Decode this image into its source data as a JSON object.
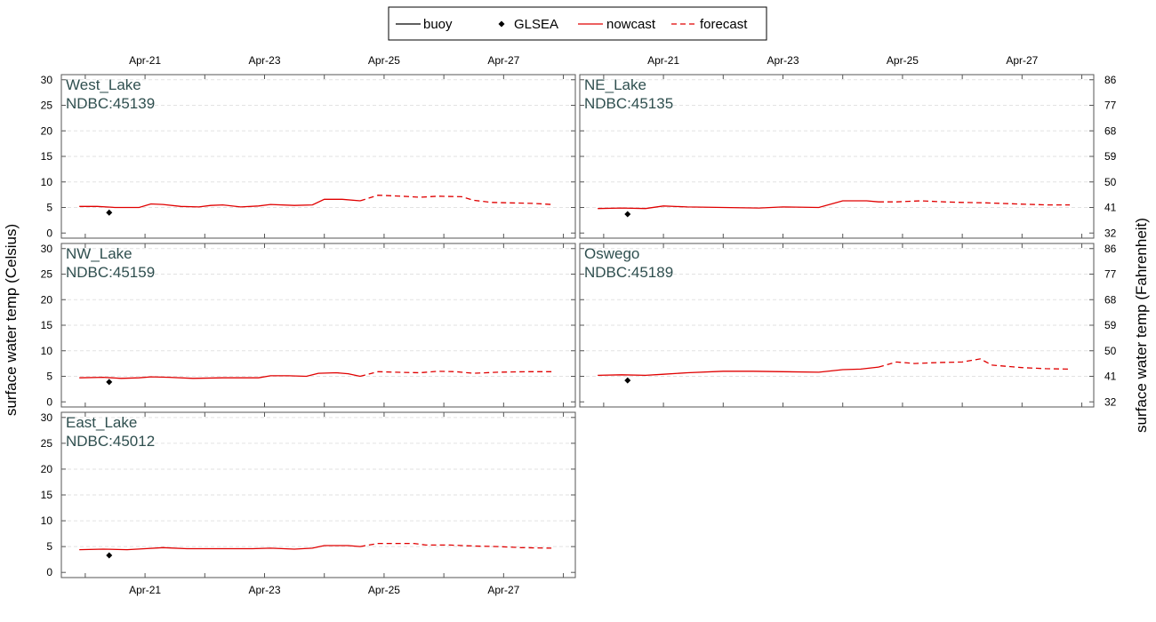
{
  "legend": {
    "items": [
      {
        "label": "buoy",
        "style": "solid",
        "color": "#000000",
        "marker": "line"
      },
      {
        "label": "GLSEA",
        "style": "point",
        "color": "#000000",
        "marker": "diamond"
      },
      {
        "label": "nowcast",
        "style": "solid",
        "color": "#e00000",
        "marker": "line"
      },
      {
        "label": "forecast",
        "style": "dashed",
        "color": "#e00000",
        "marker": "line"
      }
    ]
  },
  "axes": {
    "ylabel_left": "surface water temp (Celsius)",
    "ylabel_right": "surface water temp (Fahrenheit)"
  },
  "chart_data": {
    "type": "line",
    "layout": "small-multiples",
    "x_unit": "date (April)",
    "x_range": [
      19.6,
      28.2
    ],
    "x_ticks": [
      {
        "x": 21,
        "label": "Apr-21"
      },
      {
        "x": 23,
        "label": "Apr-23"
      },
      {
        "x": 25,
        "label": "Apr-25"
      },
      {
        "x": 27,
        "label": "Apr-27"
      }
    ],
    "ylim": [
      -1,
      31
    ],
    "y_ticks_celsius": [
      0,
      5,
      10,
      15,
      20,
      25,
      30
    ],
    "y_ticks_fahrenheit": [
      32,
      41,
      50,
      59,
      68,
      77,
      86
    ],
    "grid": true,
    "legend_placement": "top-center",
    "panels": [
      {
        "name": "West_Lake",
        "station": "NDBC:45139",
        "glsea": [
          {
            "x": 20.4,
            "y": 4.0
          }
        ],
        "nowcast": [
          [
            19.9,
            5.2
          ],
          [
            20.2,
            5.2
          ],
          [
            20.5,
            5.0
          ],
          [
            20.9,
            5.0
          ],
          [
            21.1,
            5.7
          ],
          [
            21.3,
            5.6
          ],
          [
            21.6,
            5.2
          ],
          [
            21.9,
            5.1
          ],
          [
            22.1,
            5.4
          ],
          [
            22.3,
            5.5
          ],
          [
            22.6,
            5.1
          ],
          [
            22.9,
            5.3
          ],
          [
            23.1,
            5.6
          ],
          [
            23.5,
            5.4
          ],
          [
            23.8,
            5.5
          ],
          [
            24.0,
            6.6
          ],
          [
            24.3,
            6.6
          ],
          [
            24.6,
            6.3
          ]
        ],
        "forecast": [
          [
            24.6,
            6.3
          ],
          [
            24.9,
            7.4
          ],
          [
            25.3,
            7.2
          ],
          [
            25.6,
            7.0
          ],
          [
            25.9,
            7.2
          ],
          [
            26.3,
            7.1
          ],
          [
            26.5,
            6.4
          ],
          [
            26.8,
            6.0
          ],
          [
            27.1,
            5.9
          ],
          [
            27.5,
            5.8
          ],
          [
            27.8,
            5.6
          ]
        ]
      },
      {
        "name": "NE_Lake",
        "station": "NDBC:45135",
        "glsea": [
          {
            "x": 20.4,
            "y": 3.7
          }
        ],
        "nowcast": [
          [
            19.9,
            4.8
          ],
          [
            20.3,
            4.9
          ],
          [
            20.7,
            4.8
          ],
          [
            21.0,
            5.3
          ],
          [
            21.4,
            5.1
          ],
          [
            22.0,
            5.0
          ],
          [
            22.6,
            4.9
          ],
          [
            23.0,
            5.1
          ],
          [
            23.6,
            5.0
          ],
          [
            24.0,
            6.3
          ],
          [
            24.4,
            6.3
          ],
          [
            24.6,
            6.1
          ]
        ],
        "forecast": [
          [
            24.6,
            6.1
          ],
          [
            24.9,
            6.1
          ],
          [
            25.3,
            6.3
          ],
          [
            25.7,
            6.1
          ],
          [
            26.0,
            6.0
          ],
          [
            26.4,
            5.9
          ],
          [
            26.9,
            5.7
          ],
          [
            27.4,
            5.5
          ],
          [
            27.8,
            5.5
          ]
        ]
      },
      {
        "name": "NW_Lake",
        "station": "NDBC:45159",
        "glsea": [
          {
            "x": 20.4,
            "y": 3.9
          }
        ],
        "nowcast": [
          [
            19.9,
            4.7
          ],
          [
            20.3,
            4.8
          ],
          [
            20.6,
            4.6
          ],
          [
            20.9,
            4.7
          ],
          [
            21.1,
            4.9
          ],
          [
            21.4,
            4.8
          ],
          [
            21.8,
            4.6
          ],
          [
            22.3,
            4.7
          ],
          [
            22.9,
            4.7
          ],
          [
            23.1,
            5.1
          ],
          [
            23.4,
            5.1
          ],
          [
            23.7,
            5.0
          ],
          [
            23.9,
            5.6
          ],
          [
            24.2,
            5.7
          ],
          [
            24.4,
            5.5
          ],
          [
            24.6,
            5.0
          ]
        ],
        "forecast": [
          [
            24.6,
            5.0
          ],
          [
            24.9,
            5.9
          ],
          [
            25.2,
            5.8
          ],
          [
            25.6,
            5.7
          ],
          [
            25.9,
            6.0
          ],
          [
            26.2,
            5.9
          ],
          [
            26.5,
            5.6
          ],
          [
            26.9,
            5.8
          ],
          [
            27.4,
            5.9
          ],
          [
            27.8,
            5.9
          ]
        ]
      },
      {
        "name": "Oswego",
        "station": "NDBC:45189",
        "glsea": [
          {
            "x": 20.4,
            "y": 4.2
          }
        ],
        "nowcast": [
          [
            19.9,
            5.2
          ],
          [
            20.3,
            5.3
          ],
          [
            20.7,
            5.2
          ],
          [
            21.0,
            5.4
          ],
          [
            21.4,
            5.7
          ],
          [
            22.0,
            6.0
          ],
          [
            22.5,
            6.0
          ],
          [
            23.0,
            5.9
          ],
          [
            23.6,
            5.8
          ],
          [
            24.0,
            6.3
          ],
          [
            24.3,
            6.4
          ],
          [
            24.6,
            6.8
          ]
        ],
        "forecast": [
          [
            24.6,
            6.8
          ],
          [
            24.9,
            7.8
          ],
          [
            25.2,
            7.5
          ],
          [
            25.6,
            7.7
          ],
          [
            26.0,
            7.8
          ],
          [
            26.3,
            8.4
          ],
          [
            26.5,
            7.2
          ],
          [
            27.0,
            6.7
          ],
          [
            27.4,
            6.5
          ],
          [
            27.8,
            6.4
          ]
        ]
      },
      {
        "name": "East_Lake",
        "station": "NDBC:45012",
        "glsea": [
          {
            "x": 20.4,
            "y": 3.3
          }
        ],
        "nowcast": [
          [
            19.9,
            4.4
          ],
          [
            20.3,
            4.5
          ],
          [
            20.7,
            4.4
          ],
          [
            21.0,
            4.6
          ],
          [
            21.3,
            4.8
          ],
          [
            21.7,
            4.6
          ],
          [
            22.3,
            4.6
          ],
          [
            22.8,
            4.6
          ],
          [
            23.1,
            4.7
          ],
          [
            23.5,
            4.5
          ],
          [
            23.8,
            4.7
          ],
          [
            24.0,
            5.2
          ],
          [
            24.4,
            5.2
          ],
          [
            24.6,
            5.0
          ]
        ],
        "forecast": [
          [
            24.6,
            5.0
          ],
          [
            24.9,
            5.6
          ],
          [
            25.2,
            5.6
          ],
          [
            25.5,
            5.6
          ],
          [
            25.7,
            5.3
          ],
          [
            26.1,
            5.3
          ],
          [
            26.5,
            5.1
          ],
          [
            26.9,
            5.0
          ],
          [
            27.3,
            4.8
          ],
          [
            27.8,
            4.7
          ]
        ]
      }
    ]
  }
}
